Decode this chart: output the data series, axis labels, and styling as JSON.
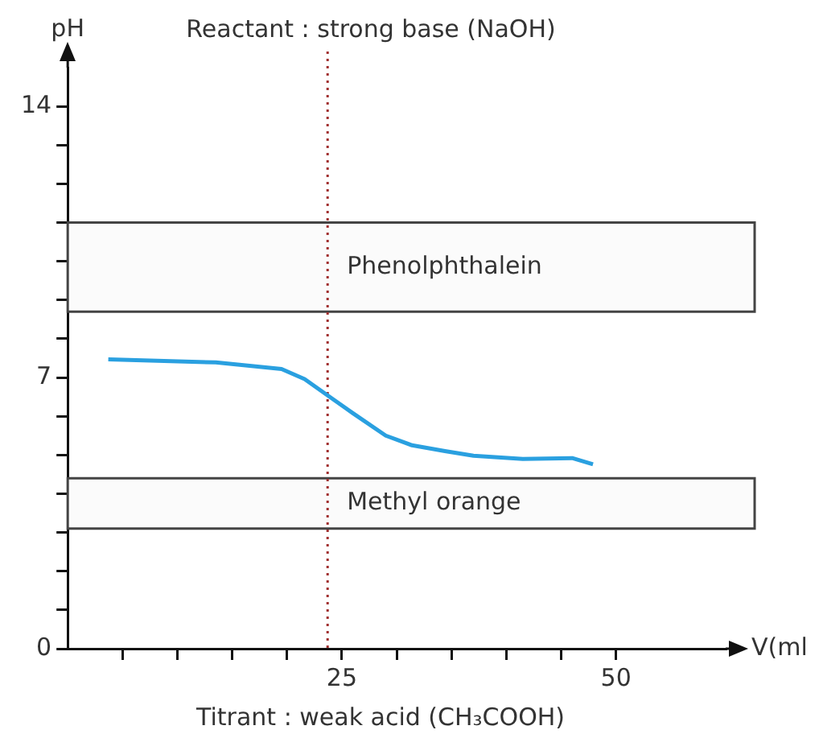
{
  "chart_data": {
    "type": "line",
    "title": "Reactant : strong base (NaOH)",
    "ylabel": "pH",
    "xlabel": "V(ml",
    "annotations": [
      "Titrant : weak acid (CH₃COOH)"
    ],
    "x": [
      3.7,
      13.5,
      19.5,
      21.6,
      23.8,
      26.0,
      29.0,
      31.4,
      34.4,
      37.0,
      41.5,
      46.0,
      47.9
    ],
    "series": [
      {
        "color": "#2aa0e0",
        "values": [
          7.47,
          7.39,
          7.22,
          6.96,
          6.52,
          6.08,
          5.5,
          5.25,
          5.1,
          4.98,
          4.9,
          4.92,
          4.76
        ]
      }
    ],
    "xlim": [
      0,
      60
    ],
    "ylim": [
      0,
      15
    ],
    "xticks": [
      {
        "value": 5,
        "label": null
      },
      {
        "value": 10,
        "label": null
      },
      {
        "value": 15,
        "label": null
      },
      {
        "value": 20,
        "label": null
      },
      25,
      {
        "value": 30,
        "label": null
      },
      {
        "value": 35,
        "label": null
      },
      {
        "value": 40,
        "label": null
      },
      {
        "value": 45,
        "label": null
      },
      50
    ],
    "yticks": [
      0,
      {
        "value": 1,
        "label": null
      },
      {
        "value": 2,
        "label": null
      },
      {
        "value": 3,
        "label": null
      },
      {
        "value": 4,
        "label": null
      },
      {
        "value": 5,
        "label": null
      },
      {
        "value": 6,
        "label": null
      },
      7,
      {
        "value": 8,
        "label": null
      },
      {
        "value": 9,
        "label": null
      },
      {
        "value": 10,
        "label": null
      },
      {
        "value": 11,
        "label": null
      },
      {
        "value": 12,
        "label": null
      },
      {
        "value": 13,
        "label": null
      },
      14
    ],
    "ref_lines": [
      {
        "axis": "x",
        "value": 23.7,
        "color": "#a03030",
        "line_style": "dotted"
      }
    ],
    "bands": [
      {
        "axis": "y",
        "from": 8.7,
        "to": 11,
        "label": "Phenolphthalein",
        "color": "#fbfbfb"
      },
      {
        "axis": "y",
        "from": 3.1,
        "to": 4.4,
        "label": "Methyl orange",
        "color": "#fbfbfb"
      }
    ],
    "grid": false,
    "legend": false,
    "marker": "none",
    "line_style": "solid"
  }
}
